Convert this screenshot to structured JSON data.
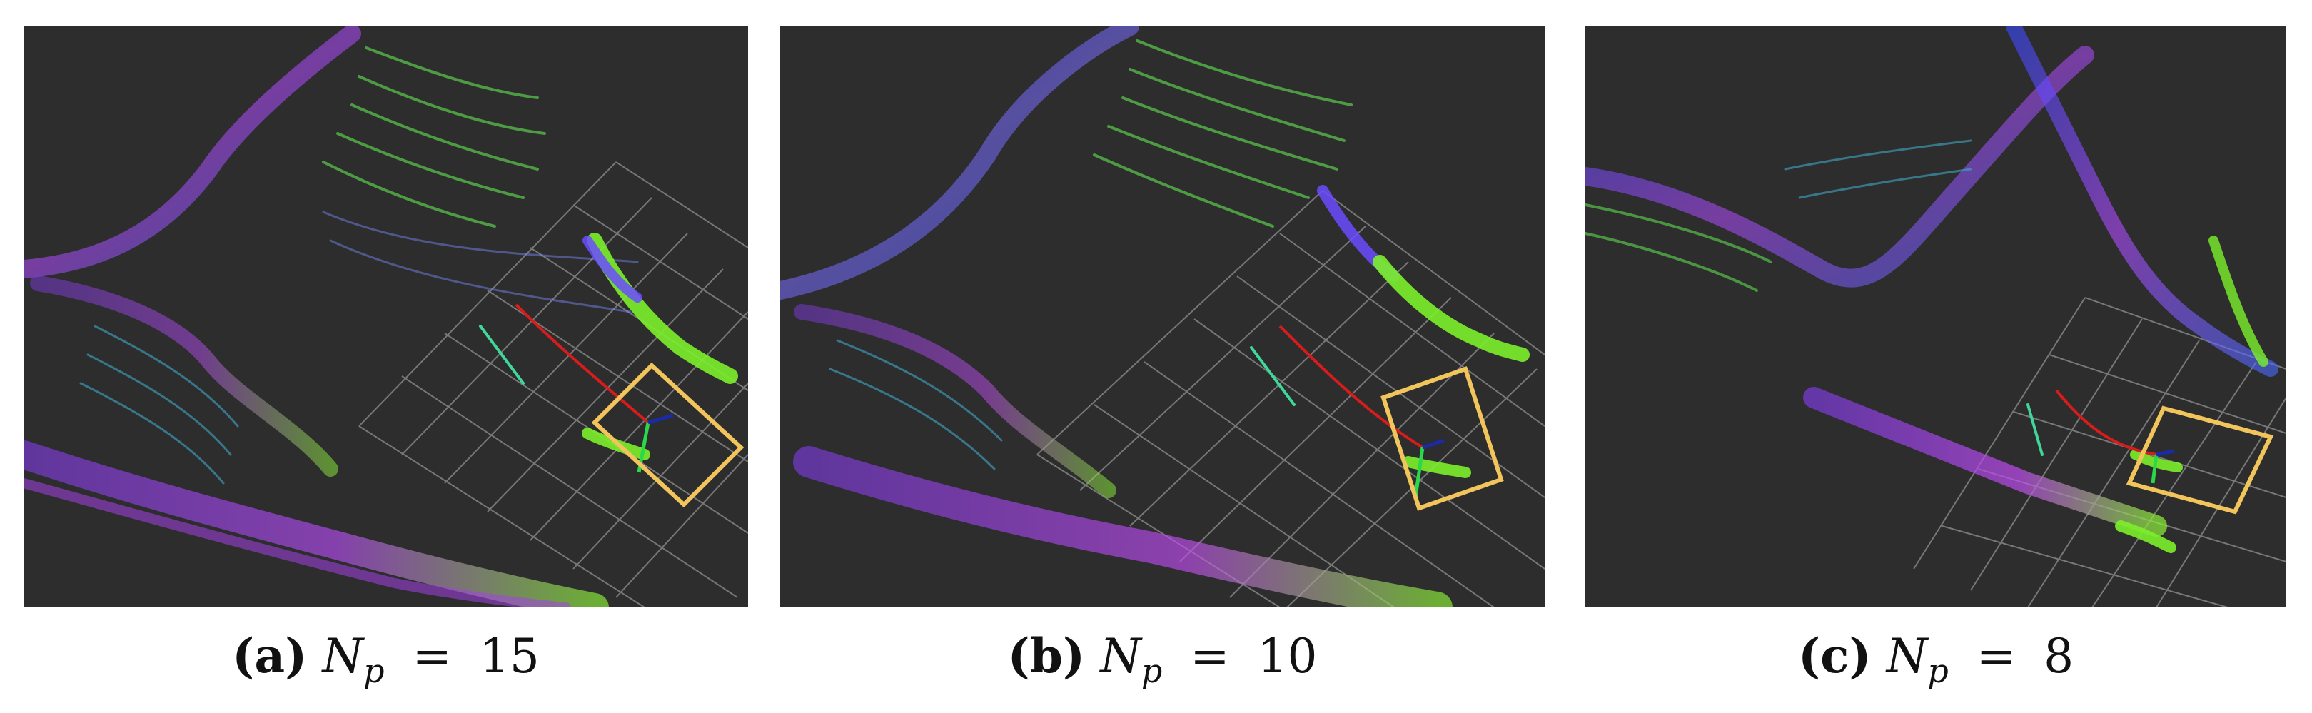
{
  "panels": [
    {
      "label": "(a)",
      "symbol": "N",
      "subscript": "p",
      "equals": "=",
      "value": "15"
    },
    {
      "label": "(b)",
      "symbol": "N",
      "subscript": "p",
      "equals": "=",
      "value": "10"
    },
    {
      "label": "(c)",
      "symbol": "N",
      "subscript": "p",
      "equals": "=",
      "value": "8"
    }
  ],
  "colors": {
    "background": "#2d2d2d",
    "grid": "#9a9a9a",
    "highlight_box": "#f2c55c",
    "trajectory": "#d81c1c",
    "point_cloud_green": "#7cf02a",
    "point_cloud_magenta": "#c84bff",
    "point_cloud_blue": "#4b5cff"
  }
}
